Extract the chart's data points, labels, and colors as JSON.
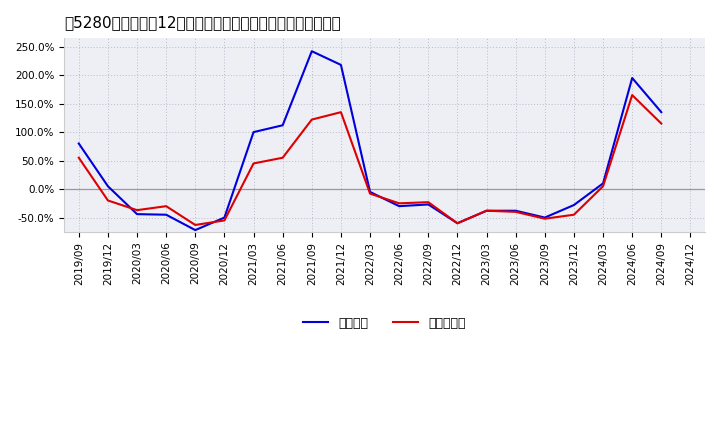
{
  "title": "［5280］　利益の12か月移動合計の対前年同期増減率の推移",
  "x_labels": [
    "2019/09",
    "2019/12",
    "2020/03",
    "2020/06",
    "2020/09",
    "2020/12",
    "2021/03",
    "2021/06",
    "2021/09",
    "2021/12",
    "2022/03",
    "2022/06",
    "2022/09",
    "2022/12",
    "2023/03",
    "2023/06",
    "2023/09",
    "2023/12",
    "2024/03",
    "2024/06",
    "2024/09",
    "2024/12"
  ],
  "keijo_rieki": [
    0.8,
    0.05,
    -0.44,
    -0.45,
    -0.72,
    -0.5,
    1.0,
    1.12,
    2.42,
    2.18,
    -0.05,
    -0.3,
    -0.27,
    -0.6,
    -0.38,
    -0.38,
    -0.5,
    -0.28,
    0.1,
    1.95,
    1.35,
    null
  ],
  "touki_rieki": [
    0.55,
    -0.2,
    -0.37,
    -0.3,
    -0.63,
    -0.55,
    0.45,
    0.55,
    1.22,
    1.35,
    -0.08,
    -0.25,
    -0.23,
    -0.6,
    -0.38,
    -0.4,
    -0.52,
    -0.45,
    0.05,
    1.65,
    1.15,
    null
  ],
  "ylim": [
    -0.75,
    2.65
  ],
  "yticks": [
    -0.5,
    0.0,
    0.5,
    1.0,
    1.5,
    2.0,
    2.5
  ],
  "ytick_labels": [
    "-50.0%",
    "0.0%",
    "50.0%",
    "100.0%",
    "150.0%",
    "200.0%",
    "250.0%"
  ],
  "line_blue": "#0000dd",
  "line_red": "#dd0000",
  "bg_color": "#ffffff",
  "plot_bg_color": "#eeeef5",
  "grid_color": "#bbbbcc",
  "zero_line_color": "#999999",
  "legend_labels": [
    "経常利益",
    "当期純利益"
  ],
  "title_fontsize": 11,
  "tick_fontsize": 7.5
}
